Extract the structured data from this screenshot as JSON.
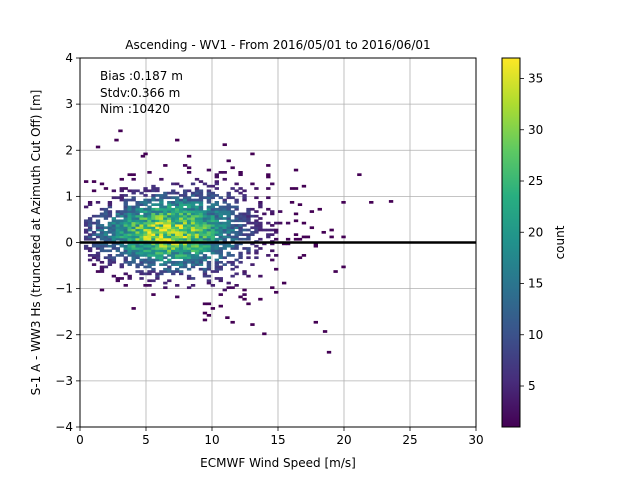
{
  "chart_data": {
    "type": "heatmap",
    "title": "Ascending - WV1 - From 2016/05/01 to 2016/06/01",
    "xlabel": "ECMWF Wind Speed [m/s]",
    "ylabel": "S-1 A - WW3 Hs (truncated at Azimuth Cut Off) [m]",
    "xlim": [
      0,
      30
    ],
    "ylim": [
      -4,
      4
    ],
    "xticks": [
      "0",
      "5",
      "10",
      "15",
      "20",
      "25",
      "30"
    ],
    "yticks": [
      "−4",
      "−3",
      "−2",
      "−1",
      "0",
      "1",
      "2",
      "3",
      "4"
    ],
    "grid": true,
    "reference_line_y": 0,
    "stats": [
      "Bias :0.187 m",
      "Stdv:0.366 m",
      "Nim :10420"
    ],
    "colorbar": {
      "label": "count",
      "colormap": "viridis",
      "range": [
        1,
        37
      ],
      "ticks": [
        "5",
        "10",
        "15",
        "20",
        "25",
        "30",
        "35"
      ]
    },
    "density_core": {
      "x_center": 6.5,
      "y_center": 0.2,
      "peak_count": 37
    },
    "data_extent": {
      "x": [
        0.3,
        24
      ],
      "y": [
        -2.4,
        2.4
      ]
    }
  }
}
